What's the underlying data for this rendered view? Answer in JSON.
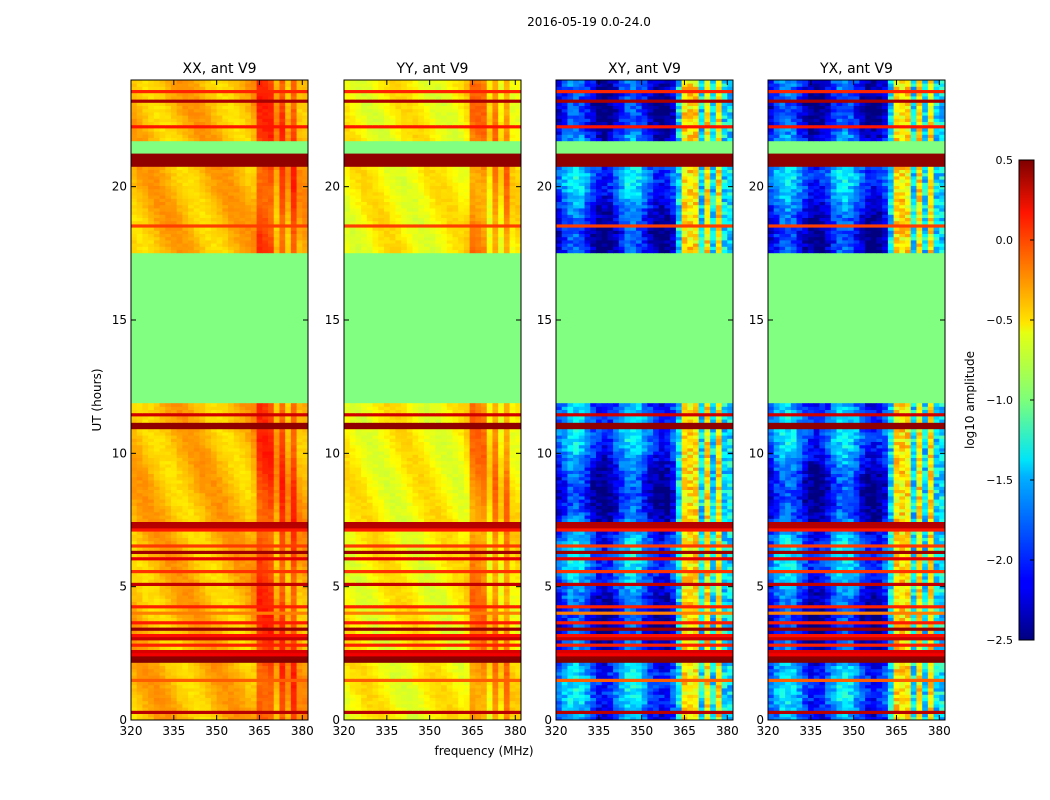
{
  "figure": {
    "suptitle": "2016-05-19 0.0-24.0"
  },
  "chart_data": {
    "type": "heatmap",
    "xlabel": "frequency (MHz)",
    "ylabel": "UT (hours)",
    "xlim": [
      320,
      382
    ],
    "ylim": [
      0,
      24
    ],
    "xticks": [
      320,
      335,
      350,
      365,
      380
    ],
    "yticks": [
      0,
      5,
      10,
      15,
      20
    ],
    "panels": [
      {
        "title": "XX, ant V9",
        "pol": "XX"
      },
      {
        "title": "YY, ant V9",
        "pol": "YY"
      },
      {
        "title": "XY, ant V9",
        "pol": "XY"
      },
      {
        "title": "YX, ant V9",
        "pol": "YX"
      }
    ],
    "bright_channels_mhz": [
      [
        363.5,
        367.5
      ],
      [
        368.5,
        371
      ],
      [
        372,
        374.5
      ],
      [
        375.5,
        378.5
      ],
      [
        379.5,
        381
      ]
    ],
    "flagged_intervals_ut": [
      [
        11.85,
        17.5
      ],
      [
        21.25,
        21.75
      ]
    ],
    "saturated_rows_ut": [
      [
        10.9,
        11.15
      ],
      [
        20.7,
        21.25
      ]
    ],
    "colorbar": {
      "label": "log10 amplitude",
      "vmin": -2.5,
      "vmax": 0.5,
      "ticks": [
        "0.5",
        "0.0",
        "−0.5",
        "−1.0",
        "−1.5",
        "−2.0",
        "−2.5"
      ],
      "tick_values": [
        0.5,
        0.0,
        -0.5,
        -1.0,
        -1.5,
        -2.0,
        -2.5
      ],
      "colormap": "jet"
    }
  }
}
